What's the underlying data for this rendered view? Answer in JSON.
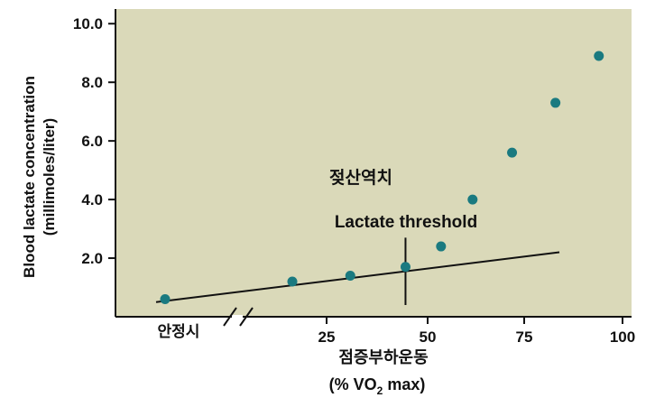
{
  "chart_data": {
    "type": "scatter",
    "title": "",
    "ylabel_line1": "Blood lactate concentration",
    "ylabel_line2": "(millimoles/liter)",
    "xlabel_line1": "점증부하운동",
    "xlabel_line2_pre": "(% V",
    "xlabel_line2_sub": "O",
    "xlabel_line2_sub2": "2",
    "xlabel_line2_post": " max)",
    "x_tick_rest": "안정시",
    "x_ticks": [
      25,
      50,
      75,
      100
    ],
    "x_tick_labels": [
      "25",
      "50",
      "75",
      "100"
    ],
    "y_ticks": [
      2.0,
      4.0,
      6.0,
      8.0,
      10.0
    ],
    "y_tick_labels": [
      "2.0",
      "4.0",
      "6.0",
      "8.0",
      "10.0"
    ],
    "xlim": [
      0,
      100
    ],
    "ylim": [
      0,
      10.5
    ],
    "axis_break": true,
    "points": [
      {
        "x": 0,
        "y": 0.6,
        "label": "안정시"
      },
      {
        "x": 18,
        "y": 1.2
      },
      {
        "x": 31,
        "y": 1.4
      },
      {
        "x": 45,
        "y": 1.7
      },
      {
        "x": 54,
        "y": 2.4
      },
      {
        "x": 62,
        "y": 4.0
      },
      {
        "x": 72,
        "y": 5.6
      },
      {
        "x": 83,
        "y": 7.3
      },
      {
        "x": 94,
        "y": 8.9
      }
    ],
    "trend_line": {
      "x": [
        0,
        84
      ],
      "y": [
        0.5,
        2.2
      ]
    },
    "threshold": {
      "x": 45,
      "y_range": [
        0.4,
        2.7
      ],
      "label_en": "Lactate threshold",
      "label_ko": "젖산역치"
    },
    "colors": {
      "background": "#dad9b9",
      "point": "#1a7a80",
      "axis": "#111111"
    }
  }
}
